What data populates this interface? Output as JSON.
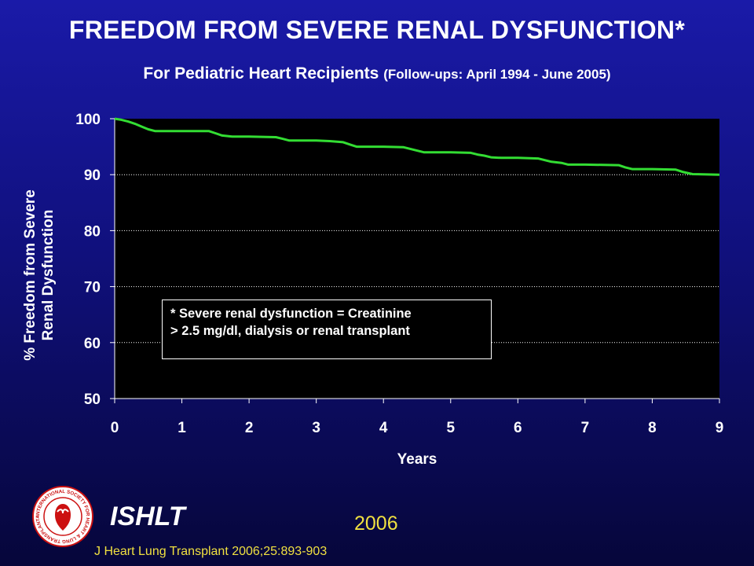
{
  "slide": {
    "title": "FREEDOM FROM SEVERE RENAL DYSFUNCTION*",
    "subtitle_main": "For Pediatric Heart Recipients",
    "subtitle_paren": "(Follow-ups: April 1994 - June 2005)",
    "note_line1": "* Severe renal dysfunction = Creatinine",
    "note_line2": "> 2.5 mg/dl, dialysis or renal transplant",
    "org": "ISHLT",
    "year": "2006",
    "citation": "J Heart Lung Transplant 2006;25:893-903",
    "logo_text": "INTERNATIONAL SOCIETY FOR HEART & LUNG TRANSPLANTATION"
  },
  "colors": {
    "curve": "#33dd33",
    "plot_bg": "#000000",
    "accent_yellow": "#f0e040",
    "logo_red": "#cc1111"
  },
  "chart_data": {
    "type": "line",
    "title": "FREEDOM FROM SEVERE RENAL DYSFUNCTION*",
    "xlabel": "Years",
    "ylabel_line1": "% Freedom from Severe",
    "ylabel_line2": "Renal Dysfunction",
    "xlim": [
      0,
      9
    ],
    "ylim": [
      50,
      100
    ],
    "xticks": [
      0,
      1,
      2,
      3,
      4,
      5,
      6,
      7,
      8,
      9
    ],
    "yticks": [
      50,
      60,
      70,
      80,
      90,
      100
    ],
    "grid": "horizontal dotted",
    "series": [
      {
        "x": [
          0,
          0.1,
          0.2,
          0.3,
          0.4,
          0.5,
          0.6,
          0.7,
          1.0,
          1.4,
          1.5,
          1.6,
          1.75,
          2.0,
          2.4,
          2.5,
          2.6,
          3.0,
          3.2,
          3.4,
          3.5,
          3.6,
          4.0,
          4.3,
          4.4,
          4.5,
          4.6,
          5.0,
          5.3,
          5.4,
          5.5,
          5.6,
          5.75,
          6.0,
          6.3,
          6.4,
          6.5,
          6.65,
          6.75,
          7.0,
          7.5,
          7.6,
          7.7,
          8.0,
          8.35,
          8.45,
          8.6,
          9.0
        ],
        "y": [
          100,
          99.8,
          99.5,
          99.1,
          98.6,
          98.1,
          97.8,
          97.8,
          97.8,
          97.8,
          97.4,
          97.0,
          96.8,
          96.8,
          96.7,
          96.4,
          96.1,
          96.1,
          96.0,
          95.8,
          95.4,
          95.0,
          95.0,
          94.9,
          94.6,
          94.3,
          94.0,
          94.0,
          93.9,
          93.6,
          93.4,
          93.1,
          93.0,
          93.0,
          92.9,
          92.6,
          92.3,
          92.1,
          91.8,
          91.8,
          91.7,
          91.3,
          91.0,
          91.0,
          90.9,
          90.5,
          90.1,
          90.0
        ]
      }
    ]
  }
}
